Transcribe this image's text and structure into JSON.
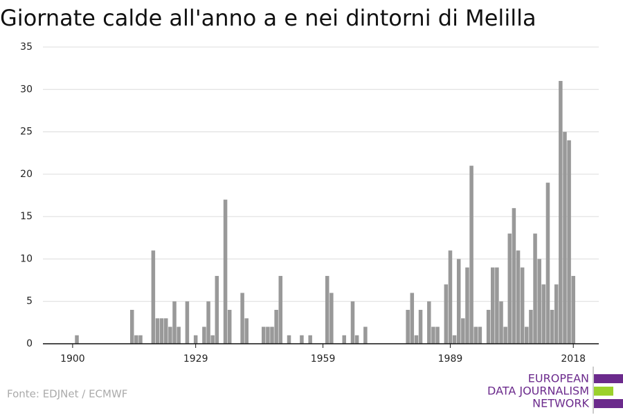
{
  "chart_data": {
    "type": "bar",
    "title": "Giornate calde all'anno a e nei dintorni di Melilla",
    "source": "Fonte: EDJNet / ECMWF",
    "logo": [
      "EUROPEAN",
      "DATA JOURNALISM",
      "NETWORK"
    ],
    "color": "#999999",
    "x": [
      1901,
      1914,
      1915,
      1916,
      1919,
      1920,
      1921,
      1922,
      1923,
      1924,
      1925,
      1927,
      1929,
      1931,
      1932,
      1933,
      1934,
      1936,
      1937,
      1940,
      1941,
      1945,
      1946,
      1947,
      1948,
      1949,
      1951,
      1954,
      1956,
      1960,
      1961,
      1964,
      1966,
      1967,
      1969,
      1979,
      1980,
      1981,
      1982,
      1984,
      1985,
      1986,
      1988,
      1989,
      1990,
      1991,
      1992,
      1993,
      1994,
      1995,
      1996,
      1998,
      1999,
      2000,
      2001,
      2002,
      2003,
      2004,
      2005,
      2006,
      2007,
      2008,
      2009,
      2010,
      2011,
      2012,
      2013,
      2014,
      2015,
      2016,
      2017,
      2018
    ],
    "values": [
      1,
      4,
      1,
      1,
      11,
      3,
      3,
      3,
      2,
      5,
      2,
      5,
      1,
      2,
      5,
      1,
      8,
      17,
      4,
      6,
      3,
      2,
      2,
      2,
      4,
      8,
      1,
      1,
      1,
      8,
      6,
      1,
      5,
      1,
      2,
      4,
      6,
      1,
      4,
      5,
      2,
      2,
      7,
      11,
      1,
      10,
      3,
      9,
      21,
      2,
      2,
      4,
      9,
      9,
      5,
      2,
      13,
      16,
      11,
      9,
      2,
      4,
      13,
      10,
      7,
      19,
      4,
      7,
      31,
      25,
      24,
      8
    ],
    "xlim": [
      1893,
      2024
    ],
    "xticks": [
      1900,
      1929,
      1959,
      1989,
      2018
    ],
    "ylim": [
      0,
      35
    ],
    "yticks": [
      0,
      5,
      10,
      15,
      20,
      25,
      30,
      35
    ],
    "grid": true
  }
}
